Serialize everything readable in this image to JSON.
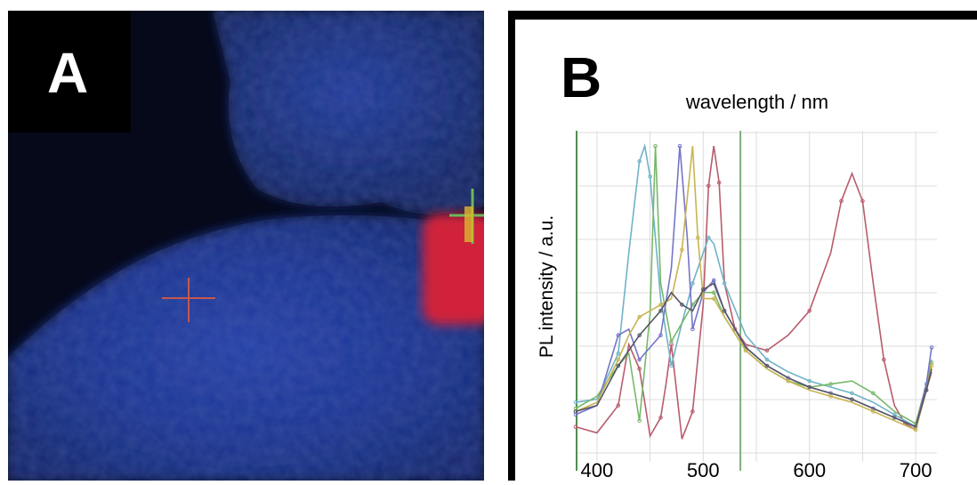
{
  "panels": {
    "a_label": "A",
    "b_label": "B"
  },
  "chart_data": {
    "type": "line",
    "xlabel": "wavelength / nm",
    "ylabel": "PL intensity / a.u.",
    "xlim": [
      380,
      720
    ],
    "ylim": [
      0,
      1.05
    ],
    "x_ticks": [
      "400",
      "500",
      "600",
      "700"
    ],
    "grid": true,
    "series": [
      {
        "color": "#b85c6c",
        "points": [
          [
            380,
            0.08
          ],
          [
            400,
            0.06
          ],
          [
            420,
            0.15
          ],
          [
            430,
            0.35
          ],
          [
            440,
            0.27
          ],
          [
            450,
            0.05
          ],
          [
            460,
            0.11
          ],
          [
            465,
            0.22
          ],
          [
            470,
            0.35
          ],
          [
            480,
            0.04
          ],
          [
            490,
            0.13
          ],
          [
            500,
            0.48
          ],
          [
            505,
            0.87
          ],
          [
            510,
            1.0
          ],
          [
            515,
            0.88
          ],
          [
            520,
            0.55
          ],
          [
            530,
            0.4
          ],
          [
            540,
            0.35
          ],
          [
            560,
            0.33
          ],
          [
            580,
            0.38
          ],
          [
            600,
            0.46
          ],
          [
            620,
            0.65
          ],
          [
            630,
            0.82
          ],
          [
            640,
            0.91
          ],
          [
            650,
            0.82
          ],
          [
            660,
            0.55
          ],
          [
            670,
            0.3
          ],
          [
            680,
            0.15
          ],
          [
            690,
            0.09
          ],
          [
            700,
            0.07
          ],
          [
            710,
            0.2
          ],
          [
            715,
            0.26
          ]
        ]
      },
      {
        "color": "#6fb3c8",
        "points": [
          [
            380,
            0.16
          ],
          [
            400,
            0.17
          ],
          [
            420,
            0.32
          ],
          [
            430,
            0.65
          ],
          [
            440,
            0.95
          ],
          [
            445,
            1.0
          ],
          [
            450,
            0.9
          ],
          [
            460,
            0.5
          ],
          [
            470,
            0.28
          ],
          [
            480,
            0.42
          ],
          [
            490,
            0.55
          ],
          [
            500,
            0.65
          ],
          [
            505,
            0.7
          ],
          [
            510,
            0.68
          ],
          [
            520,
            0.55
          ],
          [
            540,
            0.38
          ],
          [
            560,
            0.3
          ],
          [
            580,
            0.26
          ],
          [
            600,
            0.23
          ],
          [
            620,
            0.21
          ],
          [
            640,
            0.19
          ],
          [
            660,
            0.16
          ],
          [
            680,
            0.12
          ],
          [
            700,
            0.08
          ],
          [
            710,
            0.22
          ],
          [
            715,
            0.3
          ]
        ]
      },
      {
        "color": "#78b86a",
        "points": [
          [
            380,
            0.14
          ],
          [
            400,
            0.18
          ],
          [
            420,
            0.28
          ],
          [
            430,
            0.32
          ],
          [
            440,
            0.1
          ],
          [
            450,
            0.45
          ],
          [
            455,
            1.0
          ],
          [
            460,
            0.55
          ],
          [
            470,
            0.36
          ],
          [
            480,
            0.42
          ],
          [
            490,
            0.48
          ],
          [
            500,
            0.52
          ],
          [
            510,
            0.52
          ],
          [
            520,
            0.44
          ],
          [
            540,
            0.33
          ],
          [
            560,
            0.27
          ],
          [
            580,
            0.23
          ],
          [
            600,
            0.21
          ],
          [
            620,
            0.22
          ],
          [
            640,
            0.23
          ],
          [
            660,
            0.19
          ],
          [
            680,
            0.13
          ],
          [
            700,
            0.09
          ],
          [
            710,
            0.22
          ],
          [
            715,
            0.29
          ]
        ]
      },
      {
        "color": "#7575c8",
        "points": [
          [
            380,
            0.12
          ],
          [
            400,
            0.15
          ],
          [
            420,
            0.38
          ],
          [
            430,
            0.4
          ],
          [
            440,
            0.3
          ],
          [
            450,
            0.34
          ],
          [
            460,
            0.38
          ],
          [
            470,
            0.6
          ],
          [
            478,
            1.0
          ],
          [
            485,
            0.7
          ],
          [
            490,
            0.4
          ],
          [
            500,
            0.52
          ],
          [
            510,
            0.56
          ],
          [
            520,
            0.46
          ],
          [
            540,
            0.34
          ],
          [
            560,
            0.28
          ],
          [
            580,
            0.24
          ],
          [
            600,
            0.21
          ],
          [
            620,
            0.19
          ],
          [
            640,
            0.17
          ],
          [
            660,
            0.14
          ],
          [
            680,
            0.11
          ],
          [
            700,
            0.08
          ],
          [
            710,
            0.22
          ],
          [
            715,
            0.34
          ]
        ]
      },
      {
        "color": "#c8b450",
        "points": [
          [
            380,
            0.13
          ],
          [
            400,
            0.16
          ],
          [
            420,
            0.3
          ],
          [
            430,
            0.38
          ],
          [
            440,
            0.44
          ],
          [
            450,
            0.46
          ],
          [
            460,
            0.48
          ],
          [
            470,
            0.5
          ],
          [
            480,
            0.66
          ],
          [
            490,
            1.0
          ],
          [
            495,
            0.7
          ],
          [
            500,
            0.5
          ],
          [
            510,
            0.5
          ],
          [
            520,
            0.44
          ],
          [
            540,
            0.33
          ],
          [
            560,
            0.27
          ],
          [
            580,
            0.23
          ],
          [
            600,
            0.2
          ],
          [
            620,
            0.18
          ],
          [
            640,
            0.16
          ],
          [
            660,
            0.13
          ],
          [
            680,
            0.1
          ],
          [
            700,
            0.07
          ],
          [
            710,
            0.2
          ],
          [
            715,
            0.28
          ]
        ]
      },
      {
        "color": "#555566",
        "points": [
          [
            380,
            0.13
          ],
          [
            400,
            0.15
          ],
          [
            420,
            0.28
          ],
          [
            430,
            0.33
          ],
          [
            440,
            0.38
          ],
          [
            450,
            0.42
          ],
          [
            460,
            0.46
          ],
          [
            470,
            0.52
          ],
          [
            480,
            0.48
          ],
          [
            490,
            0.46
          ],
          [
            500,
            0.53
          ],
          [
            510,
            0.55
          ],
          [
            520,
            0.46
          ],
          [
            540,
            0.34
          ],
          [
            560,
            0.28
          ],
          [
            580,
            0.24
          ],
          [
            600,
            0.21
          ],
          [
            620,
            0.19
          ],
          [
            640,
            0.17
          ],
          [
            660,
            0.14
          ],
          [
            680,
            0.11
          ],
          [
            700,
            0.08
          ],
          [
            710,
            0.2
          ],
          [
            715,
            0.27
          ]
        ]
      }
    ]
  }
}
